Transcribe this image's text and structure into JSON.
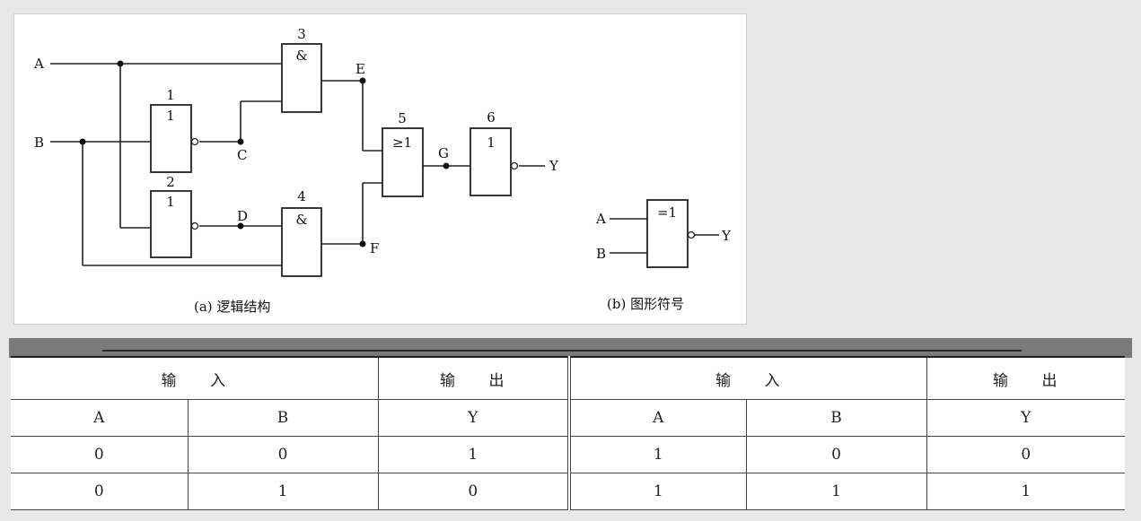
{
  "diagram": {
    "inputs": [
      "A",
      "B"
    ],
    "output": "Y",
    "nodes": [
      "C",
      "D",
      "E",
      "F",
      "G"
    ],
    "gates": [
      {
        "id": "1",
        "symbol": "1"
      },
      {
        "id": "2",
        "symbol": "1"
      },
      {
        "id": "3",
        "symbol": "&"
      },
      {
        "id": "4",
        "symbol": "&"
      },
      {
        "id": "5",
        "symbol": "≥1"
      },
      {
        "id": "6",
        "symbol": "1"
      }
    ],
    "caption_a": "(a) 逻辑结构",
    "symbol_gate": "=1",
    "symbol_inputs": [
      "A",
      "B"
    ],
    "symbol_output": "Y",
    "caption_b": "(b) 图形符号"
  },
  "table": {
    "group_input": "输 入",
    "group_output": "输 出",
    "columns": [
      "A",
      "B",
      "Y"
    ],
    "left_rows": [
      [
        "0",
        "0",
        "1"
      ],
      [
        "0",
        "1",
        "0"
      ]
    ],
    "right_rows": [
      [
        "1",
        "0",
        "0"
      ],
      [
        "1",
        "1",
        "1"
      ]
    ]
  }
}
